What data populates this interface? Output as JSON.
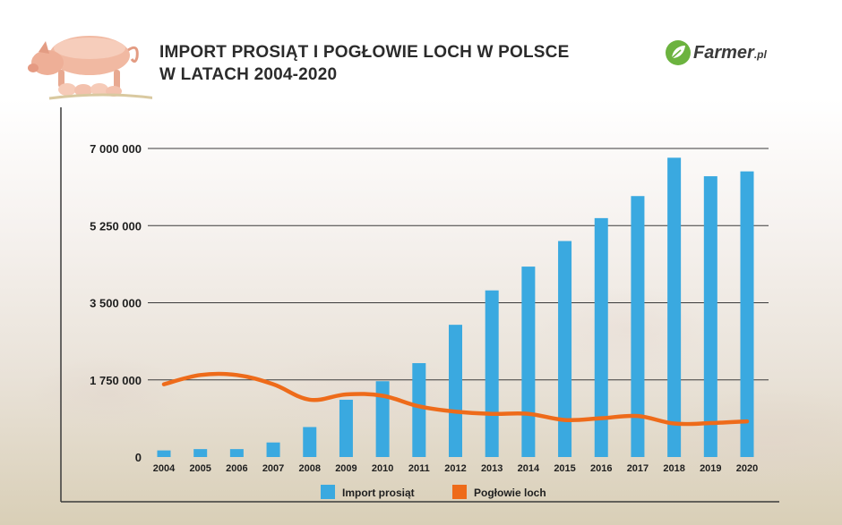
{
  "header": {
    "title_line1": "IMPORT PROSIĄT I POGŁOWIE LOCH W POLSCE",
    "title_line2": "W LATACH 2004-2020",
    "logo_text": "Farmer",
    "logo_suffix": ".pl"
  },
  "colors": {
    "bar": "#3aa9e0",
    "line": "#ee6b1a",
    "logo_leaf": "#6cb33f"
  },
  "icons": [
    "pig-with-piglets-icon",
    "leaf-logo-icon"
  ],
  "chart_data": {
    "type": "bar",
    "title": "IMPORT PROSIĄT I POGŁOWIE LOCH W POLSCE W LATACH 2004-2020",
    "xlabel": "",
    "ylabel": "",
    "categories": [
      "2004",
      "2005",
      "2006",
      "2007",
      "2008",
      "2009",
      "2010",
      "2011",
      "2012",
      "2013",
      "2014",
      "2015",
      "2016",
      "2017",
      "2018",
      "2019",
      "2020"
    ],
    "ylim": [
      0,
      7000000
    ],
    "yticks": [
      0,
      1750000,
      3500000,
      5250000,
      7000000
    ],
    "ytick_labels": [
      "0",
      "1 750 000",
      "3 500 000",
      "5 250 000",
      "7 000 000"
    ],
    "grid": true,
    "legend_position": "bottom-center",
    "series": [
      {
        "name": "Import prosiąt",
        "type": "bar",
        "values": [
          150000,
          180000,
          180000,
          330000,
          680000,
          1300000,
          1720000,
          2130000,
          3000000,
          3780000,
          4320000,
          4900000,
          5420000,
          5920000,
          6790000,
          6370000,
          6480000
        ]
      },
      {
        "name": "Pogłowie loch",
        "type": "line",
        "values": [
          1650000,
          1860000,
          1860000,
          1650000,
          1300000,
          1420000,
          1390000,
          1150000,
          1030000,
          980000,
          980000,
          840000,
          880000,
          930000,
          760000,
          770000,
          810000
        ]
      }
    ]
  }
}
